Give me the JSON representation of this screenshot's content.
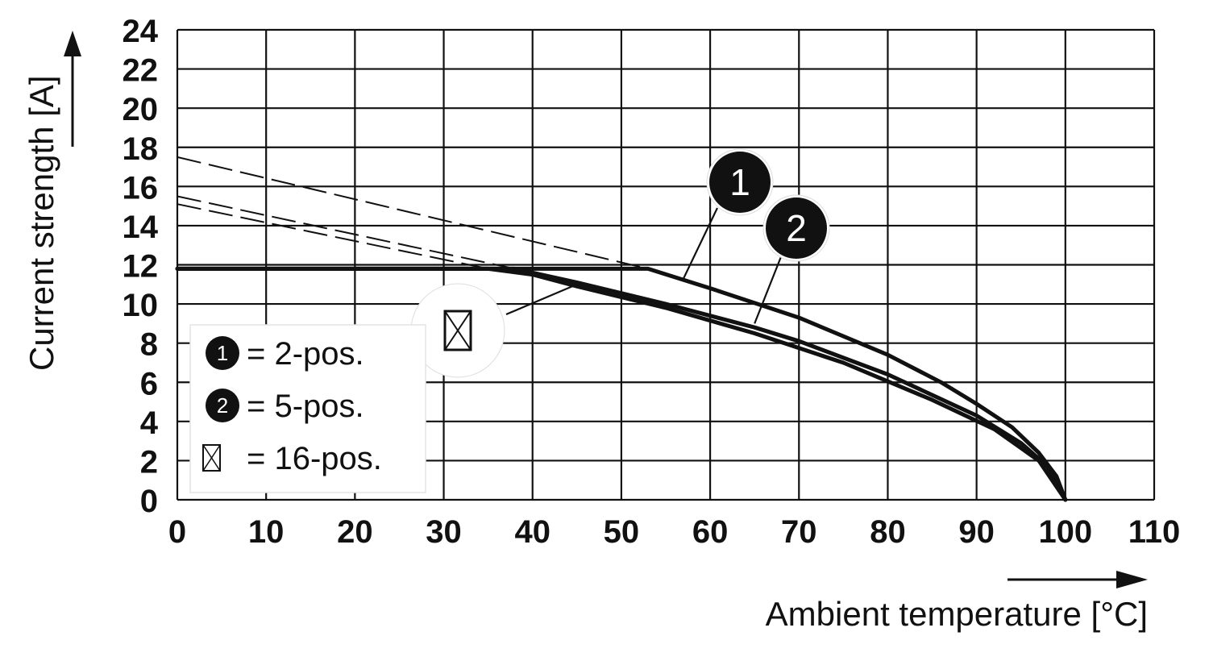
{
  "chart_data": {
    "type": "line",
    "xlabel": "Ambient temperature [°C]",
    "ylabel": "Current strength [A]",
    "xlim": [
      0,
      110
    ],
    "ylim": [
      0,
      24
    ],
    "x_ticks": [
      "0",
      "10",
      "20",
      "30",
      "40",
      "50",
      "60",
      "70",
      "80",
      "90",
      "100",
      "110"
    ],
    "y_ticks": [
      "0",
      "2",
      "4",
      "6",
      "8",
      "10",
      "12",
      "14",
      "16",
      "18",
      "20",
      "22",
      "24"
    ],
    "grid": true,
    "legend_placement": "lower-left",
    "series": [
      {
        "name": "2-pos.",
        "marker_label": "1",
        "style": "solid",
        "x": [
          0,
          53,
          60,
          70,
          80,
          86,
          90,
          94,
          97,
          99,
          100
        ],
        "y": [
          11.8,
          11.8,
          10.8,
          9.3,
          7.4,
          6.0,
          4.9,
          3.7,
          2.4,
          1.2,
          0
        ]
      },
      {
        "name": "5-pos.",
        "marker_label": "2",
        "style": "solid",
        "x": [
          0,
          38,
          45,
          55,
          65,
          70,
          80,
          90,
          95,
          98,
          100
        ],
        "y": [
          11.8,
          11.8,
          11.1,
          10.0,
          8.8,
          8.1,
          6.4,
          4.3,
          2.9,
          1.7,
          0
        ]
      },
      {
        "name": "16-pos.",
        "marker_label": "⊠",
        "style": "solid",
        "x": [
          0,
          35,
          40,
          45,
          55,
          65,
          75,
          85,
          92,
          97,
          100
        ],
        "y": [
          11.8,
          11.8,
          11.5,
          10.9,
          9.8,
          8.5,
          7.0,
          5.1,
          3.6,
          2.0,
          0
        ]
      },
      {
        "name": "",
        "style": "dashed",
        "x": [
          0,
          53
        ],
        "y": [
          17.5,
          11.8
        ]
      },
      {
        "name": "",
        "style": "dashed",
        "x": [
          0,
          38
        ],
        "y": [
          15.5,
          11.8
        ]
      },
      {
        "name": "",
        "style": "dashed",
        "x": [
          0,
          35
        ],
        "y": [
          15.1,
          11.8
        ]
      }
    ],
    "legend": [
      {
        "marker": "1",
        "text": "= 2-pos."
      },
      {
        "marker": "2",
        "text": "= 5-pos."
      },
      {
        "marker": "⊠",
        "text": "= 16-pos."
      }
    ],
    "callouts": [
      {
        "label": "1",
        "point_x": 57,
        "point_y": 11.3
      },
      {
        "label": "2",
        "point_x": 65,
        "point_y": 9.0
      },
      {
        "label": "⊠",
        "point_x": 45,
        "point_y": 11.0
      }
    ],
    "colors": {
      "line": "#111111",
      "grid": "#111111",
      "background": "#ffffff",
      "marker_fill": "#111111"
    }
  }
}
